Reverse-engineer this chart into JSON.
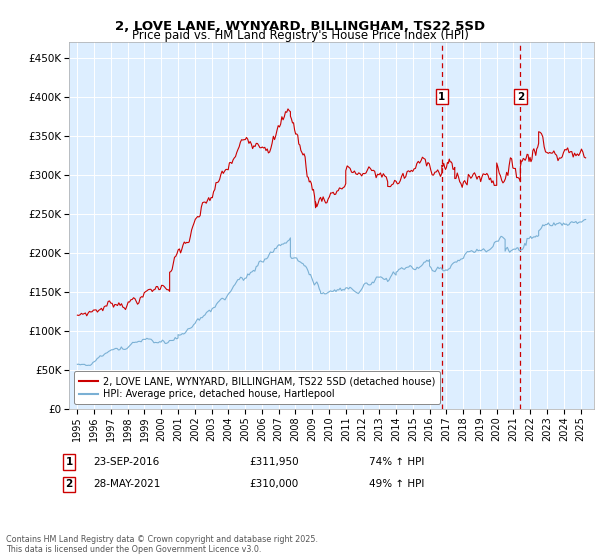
{
  "title": "2, LOVE LANE, WYNYARD, BILLINGHAM, TS22 5SD",
  "subtitle": "Price paid vs. HM Land Registry's House Price Index (HPI)",
  "legend_line1": "2, LOVE LANE, WYNYARD, BILLINGHAM, TS22 5SD (detached house)",
  "legend_line2": "HPI: Average price, detached house, Hartlepool",
  "annotation1_date": "23-SEP-2016",
  "annotation1_price": "£311,950",
  "annotation1_hpi": "74% ↑ HPI",
  "annotation2_date": "28-MAY-2021",
  "annotation2_price": "£310,000",
  "annotation2_hpi": "49% ↑ HPI",
  "red_color": "#cc0000",
  "blue_color": "#7ab0d4",
  "background_color": "#ddeeff",
  "vline_color": "#cc0000",
  "ylim": [
    0,
    470000
  ],
  "yticks": [
    0,
    50000,
    100000,
    150000,
    200000,
    250000,
    300000,
    350000,
    400000,
    450000
  ],
  "xlim_start": 1994.5,
  "xlim_end": 2025.8,
  "marker1_x": 2016.73,
  "marker2_x": 2021.41,
  "footer": "Contains HM Land Registry data © Crown copyright and database right 2025.\nThis data is licensed under the Open Government Licence v3.0."
}
